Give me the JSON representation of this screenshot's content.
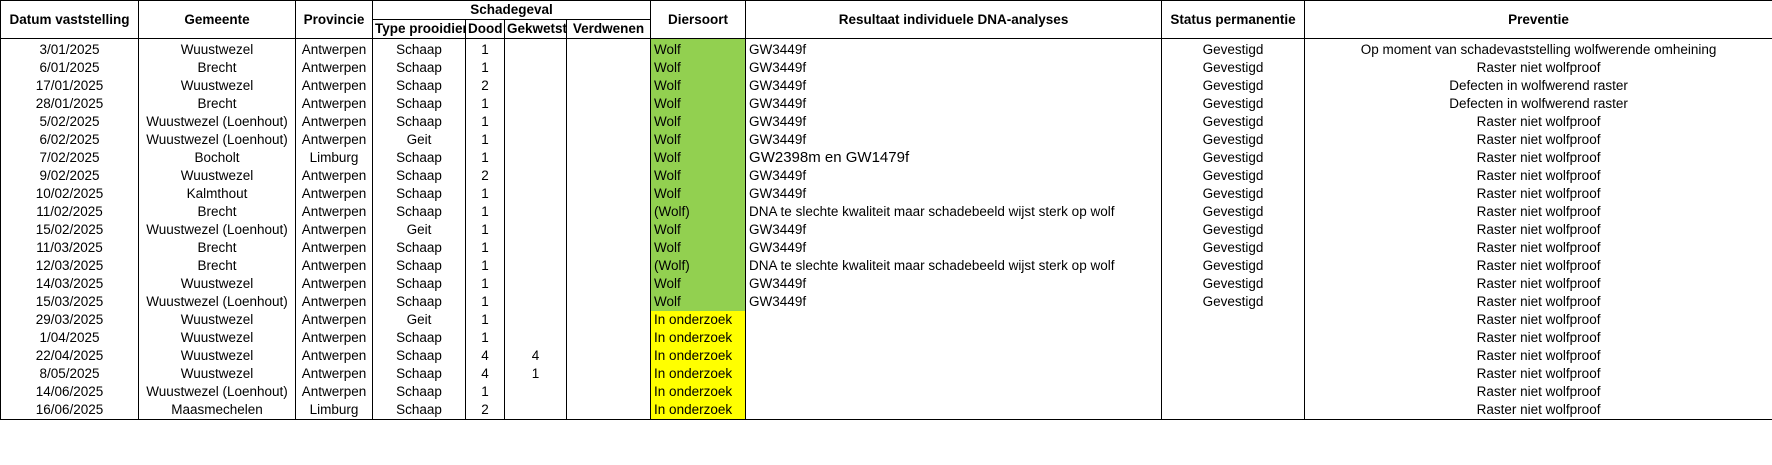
{
  "colors": {
    "wolf_green": "#92d050",
    "onderzoek_yellow": "#ffff00"
  },
  "headers": {
    "datum": "Datum vaststelling",
    "gemeente": "Gemeente",
    "provincie": "Provincie",
    "schadegeval": "Schadegeval",
    "type": "Type prooidier",
    "dood": "Dood",
    "gekwetst": "Gekwetst",
    "verdwenen": "Verdwenen",
    "diersoort": "Diersoort",
    "dna": "Resultaat individuele DNA-analyses",
    "status": "Status permanentie",
    "preventie": "Preventie"
  },
  "rows": [
    {
      "datum": "3/01/2025",
      "gemeente": "Wuustwezel",
      "provincie": "Antwerpen",
      "type": "Schaap",
      "dood": "1",
      "gekwetst": "",
      "verdwenen": "",
      "diersoort": "Wolf",
      "diersoort_status": "wolf",
      "dna": "GW3449f",
      "status": "Gevestigd",
      "preventie": "Op moment van schadevaststelling wolfwerende omheining"
    },
    {
      "datum": "6/01/2025",
      "gemeente": "Brecht",
      "provincie": "Antwerpen",
      "type": "Schaap",
      "dood": "1",
      "gekwetst": "",
      "verdwenen": "",
      "diersoort": "Wolf",
      "diersoort_status": "wolf",
      "dna": "GW3449f",
      "status": "Gevestigd",
      "preventie": "Raster niet wolfproof"
    },
    {
      "datum": "17/01/2025",
      "gemeente": "Wuustwezel",
      "provincie": "Antwerpen",
      "type": "Schaap",
      "dood": "2",
      "gekwetst": "",
      "verdwenen": "",
      "diersoort": "Wolf",
      "diersoort_status": "wolf",
      "dna": "GW3449f",
      "status": "Gevestigd",
      "preventie": "Defecten in wolfwerend raster"
    },
    {
      "datum": "28/01/2025",
      "gemeente": "Brecht",
      "provincie": "Antwerpen",
      "type": "Schaap",
      "dood": "1",
      "gekwetst": "",
      "verdwenen": "",
      "diersoort": "Wolf",
      "diersoort_status": "wolf",
      "dna": "GW3449f",
      "status": "Gevestigd",
      "preventie": "Defecten in wolfwerend raster"
    },
    {
      "datum": "5/02/2025",
      "gemeente": "Wuustwezel (Loenhout)",
      "provincie": "Antwerpen",
      "type": "Schaap",
      "dood": "1",
      "gekwetst": "",
      "verdwenen": "",
      "diersoort": "Wolf",
      "diersoort_status": "wolf",
      "dna": "GW3449f",
      "status": "Gevestigd",
      "preventie": "Raster niet wolfproof"
    },
    {
      "datum": "6/02/2025",
      "gemeente": "Wuustwezel (Loenhout)",
      "provincie": "Antwerpen",
      "type": "Geit",
      "dood": "1",
      "gekwetst": "",
      "verdwenen": "",
      "diersoort": "Wolf",
      "diersoort_status": "wolf",
      "dna": "GW3449f",
      "status": "Gevestigd",
      "preventie": "Raster niet wolfproof"
    },
    {
      "datum": "7/02/2025",
      "gemeente": "Bocholt",
      "provincie": "Limburg",
      "type": "Schaap",
      "dood": "1",
      "gekwetst": "",
      "verdwenen": "",
      "diersoort": "Wolf",
      "diersoort_status": "wolf",
      "dna": "GW2398m en GW1479f",
      "dna_big": true,
      "status": "Gevestigd",
      "preventie": "Raster niet wolfproof"
    },
    {
      "datum": "9/02/2025",
      "gemeente": "Wuustwezel",
      "provincie": "Antwerpen",
      "type": "Schaap",
      "dood": "2",
      "gekwetst": "",
      "verdwenen": "",
      "diersoort": "Wolf",
      "diersoort_status": "wolf",
      "dna": "GW3449f",
      "status": "Gevestigd",
      "preventie": "Raster niet wolfproof"
    },
    {
      "datum": "10/02/2025",
      "gemeente": "Kalmthout",
      "provincie": "Antwerpen",
      "type": "Schaap",
      "dood": "1",
      "gekwetst": "",
      "verdwenen": "",
      "diersoort": "Wolf",
      "diersoort_status": "wolf",
      "dna": "GW3449f",
      "status": "Gevestigd",
      "preventie": "Raster niet wolfproof"
    },
    {
      "datum": "11/02/2025",
      "gemeente": "Brecht",
      "provincie": "Antwerpen",
      "type": "Schaap",
      "dood": "1",
      "gekwetst": "",
      "verdwenen": "",
      "diersoort": "(Wolf)",
      "diersoort_status": "wolf",
      "dna": "DNA te slechte kwaliteit maar schadebeeld wijst sterk op wolf",
      "status": "Gevestigd",
      "preventie": "Raster niet wolfproof"
    },
    {
      "datum": "15/02/2025",
      "gemeente": "Wuustwezel (Loenhout)",
      "provincie": "Antwerpen",
      "type": "Geit",
      "dood": "1",
      "gekwetst": "",
      "verdwenen": "",
      "diersoort": "Wolf",
      "diersoort_status": "wolf",
      "dna": "GW3449f",
      "status": "Gevestigd",
      "preventie": "Raster niet wolfproof"
    },
    {
      "datum": "11/03/2025",
      "gemeente": "Brecht",
      "provincie": "Antwerpen",
      "type": "Schaap",
      "dood": "1",
      "gekwetst": "",
      "verdwenen": "",
      "diersoort": "Wolf",
      "diersoort_status": "wolf",
      "dna": "GW3449f",
      "status": "Gevestigd",
      "preventie": "Raster niet wolfproof"
    },
    {
      "datum": "12/03/2025",
      "gemeente": "Brecht",
      "provincie": "Antwerpen",
      "type": "Schaap",
      "dood": "1",
      "gekwetst": "",
      "verdwenen": "",
      "diersoort": "(Wolf)",
      "diersoort_status": "wolf",
      "dna": "DNA te slechte kwaliteit maar schadebeeld wijst sterk op wolf",
      "status": "Gevestigd",
      "preventie": "Raster niet wolfproof"
    },
    {
      "datum": "14/03/2025",
      "gemeente": "Wuustwezel",
      "provincie": "Antwerpen",
      "type": "Schaap",
      "dood": "1",
      "gekwetst": "",
      "verdwenen": "",
      "diersoort": "Wolf",
      "diersoort_status": "wolf",
      "dna": "GW3449f",
      "status": "Gevestigd",
      "preventie": "Raster niet wolfproof"
    },
    {
      "datum": "15/03/2025",
      "gemeente": "Wuustwezel (Loenhout)",
      "provincie": "Antwerpen",
      "type": "Schaap",
      "dood": "1",
      "gekwetst": "",
      "verdwenen": "",
      "diersoort": "Wolf",
      "diersoort_status": "wolf",
      "dna": "GW3449f",
      "status": "Gevestigd",
      "preventie": "Raster niet wolfproof"
    },
    {
      "datum": "29/03/2025",
      "gemeente": "Wuustwezel",
      "provincie": "Antwerpen",
      "type": "Geit",
      "dood": "1",
      "gekwetst": "",
      "verdwenen": "",
      "diersoort": "In onderzoek",
      "diersoort_status": "onderzoek",
      "dna": "",
      "status": "",
      "preventie": "Raster niet wolfproof"
    },
    {
      "datum": "1/04/2025",
      "gemeente": "Wuustwezel",
      "provincie": "Antwerpen",
      "type": "Schaap",
      "dood": "1",
      "gekwetst": "",
      "verdwenen": "",
      "diersoort": "In onderzoek",
      "diersoort_status": "onderzoek",
      "dna": "",
      "status": "",
      "preventie": "Raster niet wolfproof"
    },
    {
      "datum": "22/04/2025",
      "gemeente": "Wuustwezel",
      "provincie": "Antwerpen",
      "type": "Schaap",
      "dood": "4",
      "gekwetst": "4",
      "verdwenen": "",
      "diersoort": "In onderzoek",
      "diersoort_status": "onderzoek",
      "dna": "",
      "status": "",
      "preventie": "Raster niet wolfproof"
    },
    {
      "datum": "8/05/2025",
      "gemeente": "Wuustwezel",
      "provincie": "Antwerpen",
      "type": "Schaap",
      "dood": "4",
      "gekwetst": "1",
      "verdwenen": "",
      "diersoort": "In onderzoek",
      "diersoort_status": "onderzoek",
      "dna": "",
      "status": "",
      "preventie": "Raster niet wolfproof"
    },
    {
      "datum": "14/06/2025",
      "gemeente": "Wuustwezel (Loenhout)",
      "provincie": "Antwerpen",
      "type": "Schaap",
      "dood": "1",
      "gekwetst": "",
      "verdwenen": "",
      "diersoort": "In onderzoek",
      "diersoort_status": "onderzoek",
      "dna": "",
      "status": "",
      "preventie": "Raster niet wolfproof"
    },
    {
      "datum": "16/06/2025",
      "gemeente": "Maasmechelen",
      "provincie": "Limburg",
      "type": "Schaap",
      "dood": "2",
      "gekwetst": "",
      "verdwenen": "",
      "diersoort": "In onderzoek",
      "diersoort_status": "onderzoek",
      "dna": "",
      "status": "",
      "preventie": "Raster niet wolfproof"
    }
  ]
}
